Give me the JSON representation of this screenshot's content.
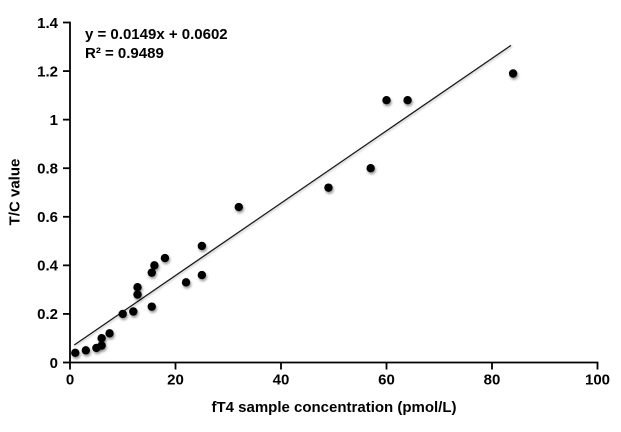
{
  "chart_data": {
    "type": "scatter",
    "title": "",
    "xlabel": "fT4 sample concentration (pmol/L)",
    "ylabel": "T/C value",
    "xlim": [
      0,
      100
    ],
    "ylim": [
      0,
      1.4
    ],
    "grid": false,
    "legend": null,
    "x_ticks": [
      {
        "v": 0,
        "label": "0"
      },
      {
        "v": 20,
        "label": "20"
      },
      {
        "v": 40,
        "label": "40"
      },
      {
        "v": 60,
        "label": "60"
      },
      {
        "v": 80,
        "label": "80"
      },
      {
        "v": 100,
        "label": "100"
      }
    ],
    "y_ticks": [
      {
        "v": 0,
        "label": "0"
      },
      {
        "v": 0.2,
        "label": "0.2"
      },
      {
        "v": 0.4,
        "label": "0.4"
      },
      {
        "v": 0.6,
        "label": "0.6"
      },
      {
        "v": 0.8,
        "label": "0.8"
      },
      {
        "v": 1,
        "label": "1"
      },
      {
        "v": 1.2,
        "label": "1.2"
      },
      {
        "v": 1.4,
        "label": "1.4"
      }
    ],
    "points": [
      [
        1,
        0.04
      ],
      [
        3,
        0.05
      ],
      [
        5,
        0.06
      ],
      [
        6,
        0.07
      ],
      [
        6,
        0.1
      ],
      [
        7.5,
        0.12
      ],
      [
        10,
        0.2
      ],
      [
        12,
        0.21
      ],
      [
        12.8,
        0.28
      ],
      [
        12.8,
        0.31
      ],
      [
        15.5,
        0.23
      ],
      [
        15.5,
        0.37
      ],
      [
        16,
        0.4
      ],
      [
        18,
        0.43
      ],
      [
        22,
        0.33
      ],
      [
        25,
        0.36
      ],
      [
        25,
        0.48
      ],
      [
        32,
        0.64
      ],
      [
        49,
        0.72
      ],
      [
        57,
        0.8
      ],
      [
        60,
        1.08
      ],
      [
        64,
        1.08
      ],
      [
        84,
        1.19
      ]
    ],
    "trendline": {
      "slope": 0.0149,
      "intercept": 0.0602,
      "x_start": 0.8,
      "x_end": 83.6
    },
    "annotation": {
      "equation": "y = 0.0149x + 0.0602",
      "r2": "R² = 0.9489"
    },
    "colors": {
      "marker": "#000000",
      "trendline": "#1a1a1a",
      "axis": "#000000",
      "text": "#000000",
      "background": "#ffffff"
    }
  }
}
